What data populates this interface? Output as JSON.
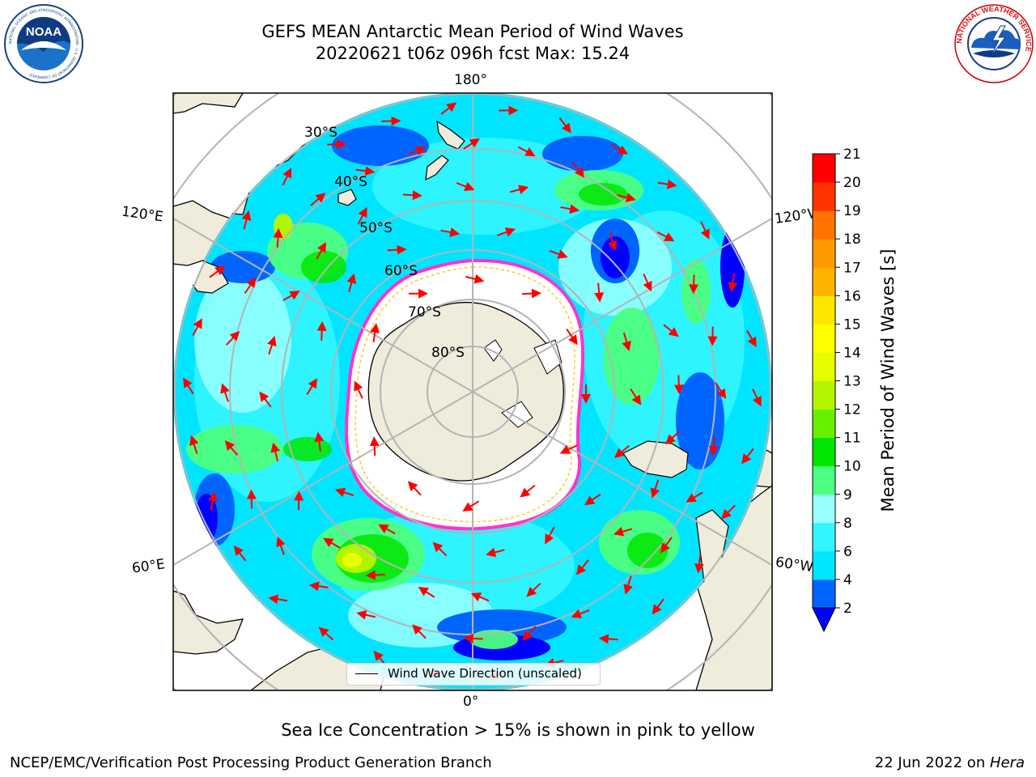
{
  "title": {
    "line1": "GEFS MEAN Antarctic Mean Period of Wind Waves",
    "line2": "20220621 t06z 096h fcst   Max: 15.24"
  },
  "map": {
    "projection": "south-polar-stereographic",
    "longitude_labels": {
      "top": "180°",
      "bottom": "0°",
      "upper_left": "120°E",
      "upper_right": "120°W",
      "lower_left": "60°E",
      "lower_right": "60°W"
    },
    "latitude_labels": [
      "30°S",
      "40°S",
      "50°S",
      "60°S",
      "70°S",
      "80°S"
    ],
    "legend": "Wind Wave Direction (unscaled)",
    "land_color": "#efecdc",
    "ice_color": "#ffffff",
    "ice_edge_colors": [
      "#ff33cc",
      "#ffcc33"
    ],
    "arrow_color": "#ff0000",
    "grid_color": "#b4b4b4"
  },
  "colorbar": {
    "label": "Mean Period of Wind Waves [s]",
    "ticks": [
      "2",
      "4",
      "6",
      "8",
      "9",
      "10",
      "11",
      "12",
      "13",
      "14",
      "15",
      "16",
      "17",
      "18",
      "19",
      "20",
      "21"
    ],
    "colors": [
      "#0064ff",
      "#00e5ff",
      "#33f5ff",
      "#99ffff",
      "#4dff80",
      "#00e600",
      "#66f000",
      "#b3f500",
      "#e6ff00",
      "#ffff00",
      "#ffe600",
      "#ffb300",
      "#ff9900",
      "#ff7300",
      "#ff3300",
      "#ff0000"
    ],
    "under_color": "#0000ff"
  },
  "footer": {
    "note": "Sea Ice Concentration > 15% is shown in pink to yellow",
    "credit_left": "NCEP/EMC/Verification Post Processing Product Generation Branch",
    "credit_right_date": "22 Jun 2022 on ",
    "credit_right_host": "Hera"
  },
  "logos": {
    "left": "NOAA",
    "left_ring": "NATIONAL OCEANIC AND ATMOSPHERIC ADMINISTRATION · U.S. DEPARTMENT OF COMMERCE",
    "right_ring": "NATIONAL WEATHER SERVICE"
  }
}
